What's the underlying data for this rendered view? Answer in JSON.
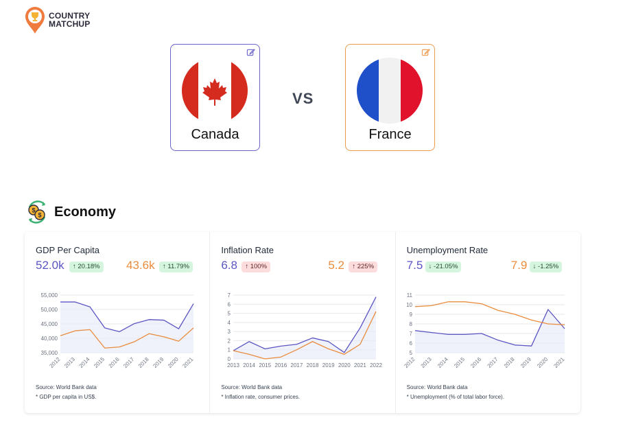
{
  "logo": {
    "line1": "COUNTRY",
    "line2": "MATCHUP"
  },
  "comparison": {
    "left": {
      "name": "Canada",
      "color": "#5b55c2"
    },
    "right": {
      "name": "France",
      "color": "#ea8c3c"
    },
    "vs": "VS"
  },
  "section": {
    "title": "Economy"
  },
  "panels": [
    {
      "title": "GDP Per Capita",
      "left_value": "52.0k",
      "left_change": "20.18%",
      "left_dir": "up",
      "right_value": "43.6k",
      "right_change": "11.79%",
      "right_dir": "up",
      "source": "Source: World Bank data",
      "note": "* GDP per capita in US$."
    },
    {
      "title": "Inflation Rate",
      "left_value": "6.8",
      "left_change": "100%",
      "left_dir": "up",
      "right_value": "5.2",
      "right_change": "225%",
      "right_dir": "up",
      "source": "Source: World Bank data",
      "note": "* Inflation rate, consumer prices."
    },
    {
      "title": "Unemployment Rate",
      "left_value": "7.5",
      "left_change": "-21.05%",
      "left_dir": "down",
      "right_value": "7.9",
      "right_change": "-1.25%",
      "right_dir": "down",
      "source": "Source: World Bank data",
      "note": "* Unemployment (% of total labor force)."
    }
  ],
  "chart_data": [
    {
      "type": "line",
      "x": [
        "2012",
        "2013",
        "2014",
        "2015",
        "2016",
        "2017",
        "2018",
        "2019",
        "2020",
        "2021"
      ],
      "y_ticks": [
        "35,000",
        "40,000",
        "45,000",
        "50,000",
        "55,000"
      ],
      "ylim": [
        35000,
        55000
      ],
      "x_rotated": true,
      "series": [
        {
          "name": "Canada",
          "values": [
            52600,
            52600,
            50900,
            43600,
            42300,
            45100,
            46500,
            46300,
            43300,
            52000
          ]
        },
        {
          "name": "France",
          "values": [
            40900,
            42600,
            43000,
            36600,
            37000,
            38800,
            41600,
            40500,
            39000,
            43600
          ]
        }
      ]
    },
    {
      "type": "line",
      "x": [
        "2013",
        "2014",
        "2015",
        "2016",
        "2017",
        "2018",
        "2019",
        "2020",
        "2021",
        "2022"
      ],
      "y_ticks": [
        "0",
        "1",
        "2",
        "3",
        "4",
        "5",
        "6",
        "7"
      ],
      "ylim": [
        0,
        7
      ],
      "x_rotated": false,
      "series": [
        {
          "name": "Canada",
          "values": [
            0.9,
            1.9,
            1.1,
            1.4,
            1.6,
            2.3,
            1.9,
            0.7,
            3.4,
            6.8
          ]
        },
        {
          "name": "France",
          "values": [
            0.9,
            0.5,
            0.0,
            0.2,
            1.0,
            1.9,
            1.1,
            0.5,
            1.6,
            5.2
          ]
        }
      ]
    },
    {
      "type": "line",
      "x": [
        "2012",
        "2013",
        "2014",
        "2015",
        "2016",
        "2017",
        "2018",
        "2019",
        "2020",
        "2021"
      ],
      "y_ticks": [
        "5",
        "6",
        "7",
        "8",
        "9",
        "10",
        "11"
      ],
      "ylim": [
        5,
        11
      ],
      "x_rotated": true,
      "series": [
        {
          "name": "Canada",
          "values": [
            7.3,
            7.1,
            6.9,
            6.9,
            7.0,
            6.3,
            5.8,
            5.7,
            9.5,
            7.5
          ]
        },
        {
          "name": "France",
          "values": [
            9.8,
            9.9,
            10.3,
            10.3,
            10.1,
            9.4,
            9.0,
            8.4,
            8.0,
            7.9
          ]
        }
      ]
    }
  ]
}
